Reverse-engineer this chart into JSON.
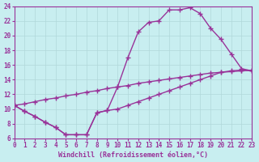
{
  "xlabel": "Windchill (Refroidissement éolien,°C)",
  "bg_color": "#c8eef0",
  "grid_color": "#b0d8da",
  "line_color": "#993399",
  "curve_upper_x": [
    0,
    1,
    2,
    3,
    4,
    5,
    6,
    7,
    8,
    9,
    10,
    11,
    12,
    13,
    14,
    15,
    16,
    17,
    18,
    19,
    20,
    21,
    22,
    23
  ],
  "curve_upper_y": [
    10.5,
    9.7,
    9.0,
    8.2,
    7.5,
    6.5,
    6.5,
    6.5,
    9.5,
    9.8,
    13.0,
    17.0,
    20.5,
    21.8,
    22.0,
    23.5,
    23.5,
    23.8,
    23.0,
    21.0,
    19.5,
    17.5,
    15.5,
    15.2
  ],
  "curve_mid_x": [
    0,
    1,
    2,
    3,
    4,
    5,
    6,
    7,
    8,
    9,
    10,
    11,
    12,
    13,
    14,
    15,
    16,
    17,
    18,
    19,
    20,
    21,
    22,
    23
  ],
  "curve_mid_y": [
    10.5,
    10.7,
    11.0,
    11.3,
    11.5,
    11.8,
    12.0,
    12.3,
    12.5,
    12.8,
    13.0,
    13.2,
    13.5,
    13.7,
    13.9,
    14.1,
    14.3,
    14.5,
    14.7,
    14.9,
    15.0,
    15.1,
    15.2,
    15.3
  ],
  "curve_lower_x": [
    0,
    1,
    2,
    3,
    4,
    5,
    6,
    7,
    8,
    9,
    10,
    11,
    12,
    13,
    14,
    15,
    16,
    17,
    18,
    19,
    20,
    21,
    22,
    23
  ],
  "curve_lower_y": [
    10.5,
    9.7,
    9.0,
    8.2,
    7.5,
    6.5,
    6.5,
    6.5,
    9.5,
    9.8,
    10.0,
    10.5,
    11.0,
    11.5,
    12.0,
    12.5,
    13.0,
    13.5,
    14.0,
    14.5,
    15.0,
    15.2,
    15.3,
    15.2
  ],
  "xlim": [
    0,
    23
  ],
  "ylim": [
    6,
    24
  ],
  "xticks": [
    0,
    1,
    2,
    3,
    4,
    5,
    6,
    7,
    8,
    9,
    10,
    11,
    12,
    13,
    14,
    15,
    16,
    17,
    18,
    19,
    20,
    21,
    22,
    23
  ],
  "yticks": [
    6,
    8,
    10,
    12,
    14,
    16,
    18,
    20,
    22,
    24
  ],
  "marker": "+",
  "marker_size": 4,
  "line_width": 1.0,
  "xlabel_fontsize": 6,
  "tick_fontsize": 5.5
}
